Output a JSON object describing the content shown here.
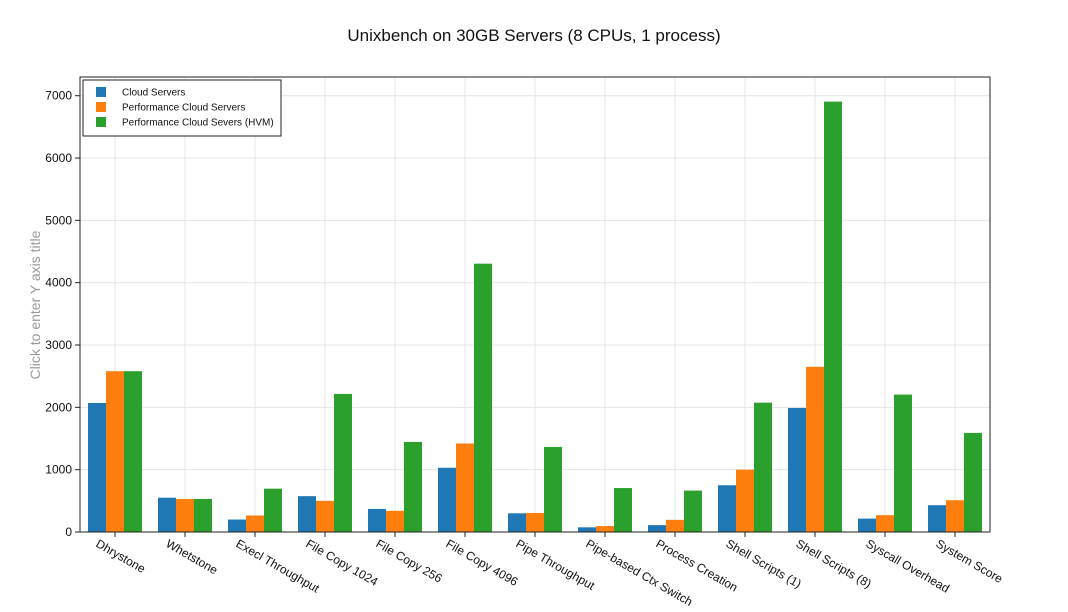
{
  "chart_data": {
    "type": "bar",
    "title": "Unixbench on 30GB Servers (8 CPUs, 1 process)",
    "xlabel": "",
    "ylabel": "Click to enter Y axis title",
    "ylim": [
      0,
      7300
    ],
    "yticks": [
      0,
      1000,
      2000,
      3000,
      4000,
      5000,
      6000,
      7000
    ],
    "grid": true,
    "legend_position": "top-left",
    "categories": [
      "Dhrystone",
      "Whetstone",
      "Execl Throughput",
      "File Copy 1024",
      "File Copy 256",
      "File Copy 4096",
      "Pipe Throughput",
      "Pipe-based Ctx Switch",
      "Process Creation",
      "Shell Scripts (1)",
      "Shell Scripts (8)",
      "Syscall Overhead",
      "System Score"
    ],
    "series": [
      {
        "name": "Cloud Servers",
        "color": "#1f77b4",
        "values": [
          2070,
          550,
          200,
          575,
          370,
          1030,
          300,
          75,
          110,
          750,
          1990,
          215,
          430
        ]
      },
      {
        "name": "Performance Cloud Servers",
        "color": "#ff7f0e",
        "values": [
          2580,
          530,
          265,
          500,
          340,
          1420,
          305,
          95,
          195,
          1000,
          2650,
          270,
          510
        ]
      },
      {
        "name": "Performance Cloud Severs (HVM)",
        "color": "#2ca02c",
        "values": [
          2580,
          530,
          695,
          2215,
          1445,
          4305,
          1365,
          705,
          665,
          2075,
          6905,
          2205,
          1590
        ]
      }
    ]
  }
}
